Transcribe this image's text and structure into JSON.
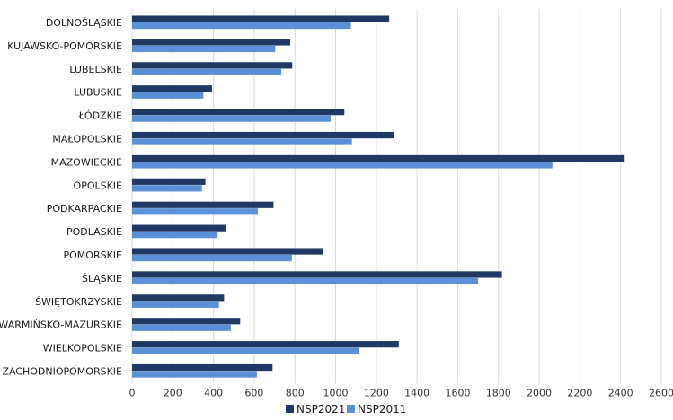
{
  "chart_data": {
    "type": "bar",
    "orientation": "horizontal",
    "categories": [
      "DOLNOŚLĄSKIE",
      "KUJAWSKO-POMORSKIE",
      "LUBELSKIE",
      "LUBUSKIE",
      "ŁÓDZKIE",
      "MAŁOPOLSKIE",
      "MAZOWIECKIE",
      "OPOLSKIE",
      "PODKARPACKIE",
      "PODLASKIE",
      "POMORSKIE",
      "ŚLĄSKIE",
      "ŚWIĘTOKRZYSKIE",
      "WARMIŃSKO-MAZURSKIE",
      "WIELKOPOLSKIE",
      "ZACHODNIOPOMORSKIE"
    ],
    "series": [
      {
        "name": "NSP2021",
        "color": "#1f3864",
        "values": [
          1263,
          777,
          787,
          393,
          1043,
          1287,
          2420,
          360,
          695,
          463,
          937,
          1817,
          452,
          531,
          1310,
          690
        ]
      },
      {
        "name": "NSP2011",
        "color": "#5b8fd8",
        "values": [
          1075,
          703,
          733,
          350,
          975,
          1080,
          2065,
          343,
          618,
          420,
          785,
          1700,
          427,
          485,
          1113,
          613
        ]
      }
    ],
    "xlim": [
      0,
      2600
    ],
    "xticks": [
      "0",
      "200",
      "400",
      "600",
      "800",
      "1000",
      "1200",
      "1400",
      "1600",
      "1800",
      "2000",
      "2200",
      "2400",
      "2600"
    ],
    "grid": "vertical",
    "legend_position": "bottom-center",
    "title": "",
    "xlabel": "",
    "ylabel": ""
  }
}
